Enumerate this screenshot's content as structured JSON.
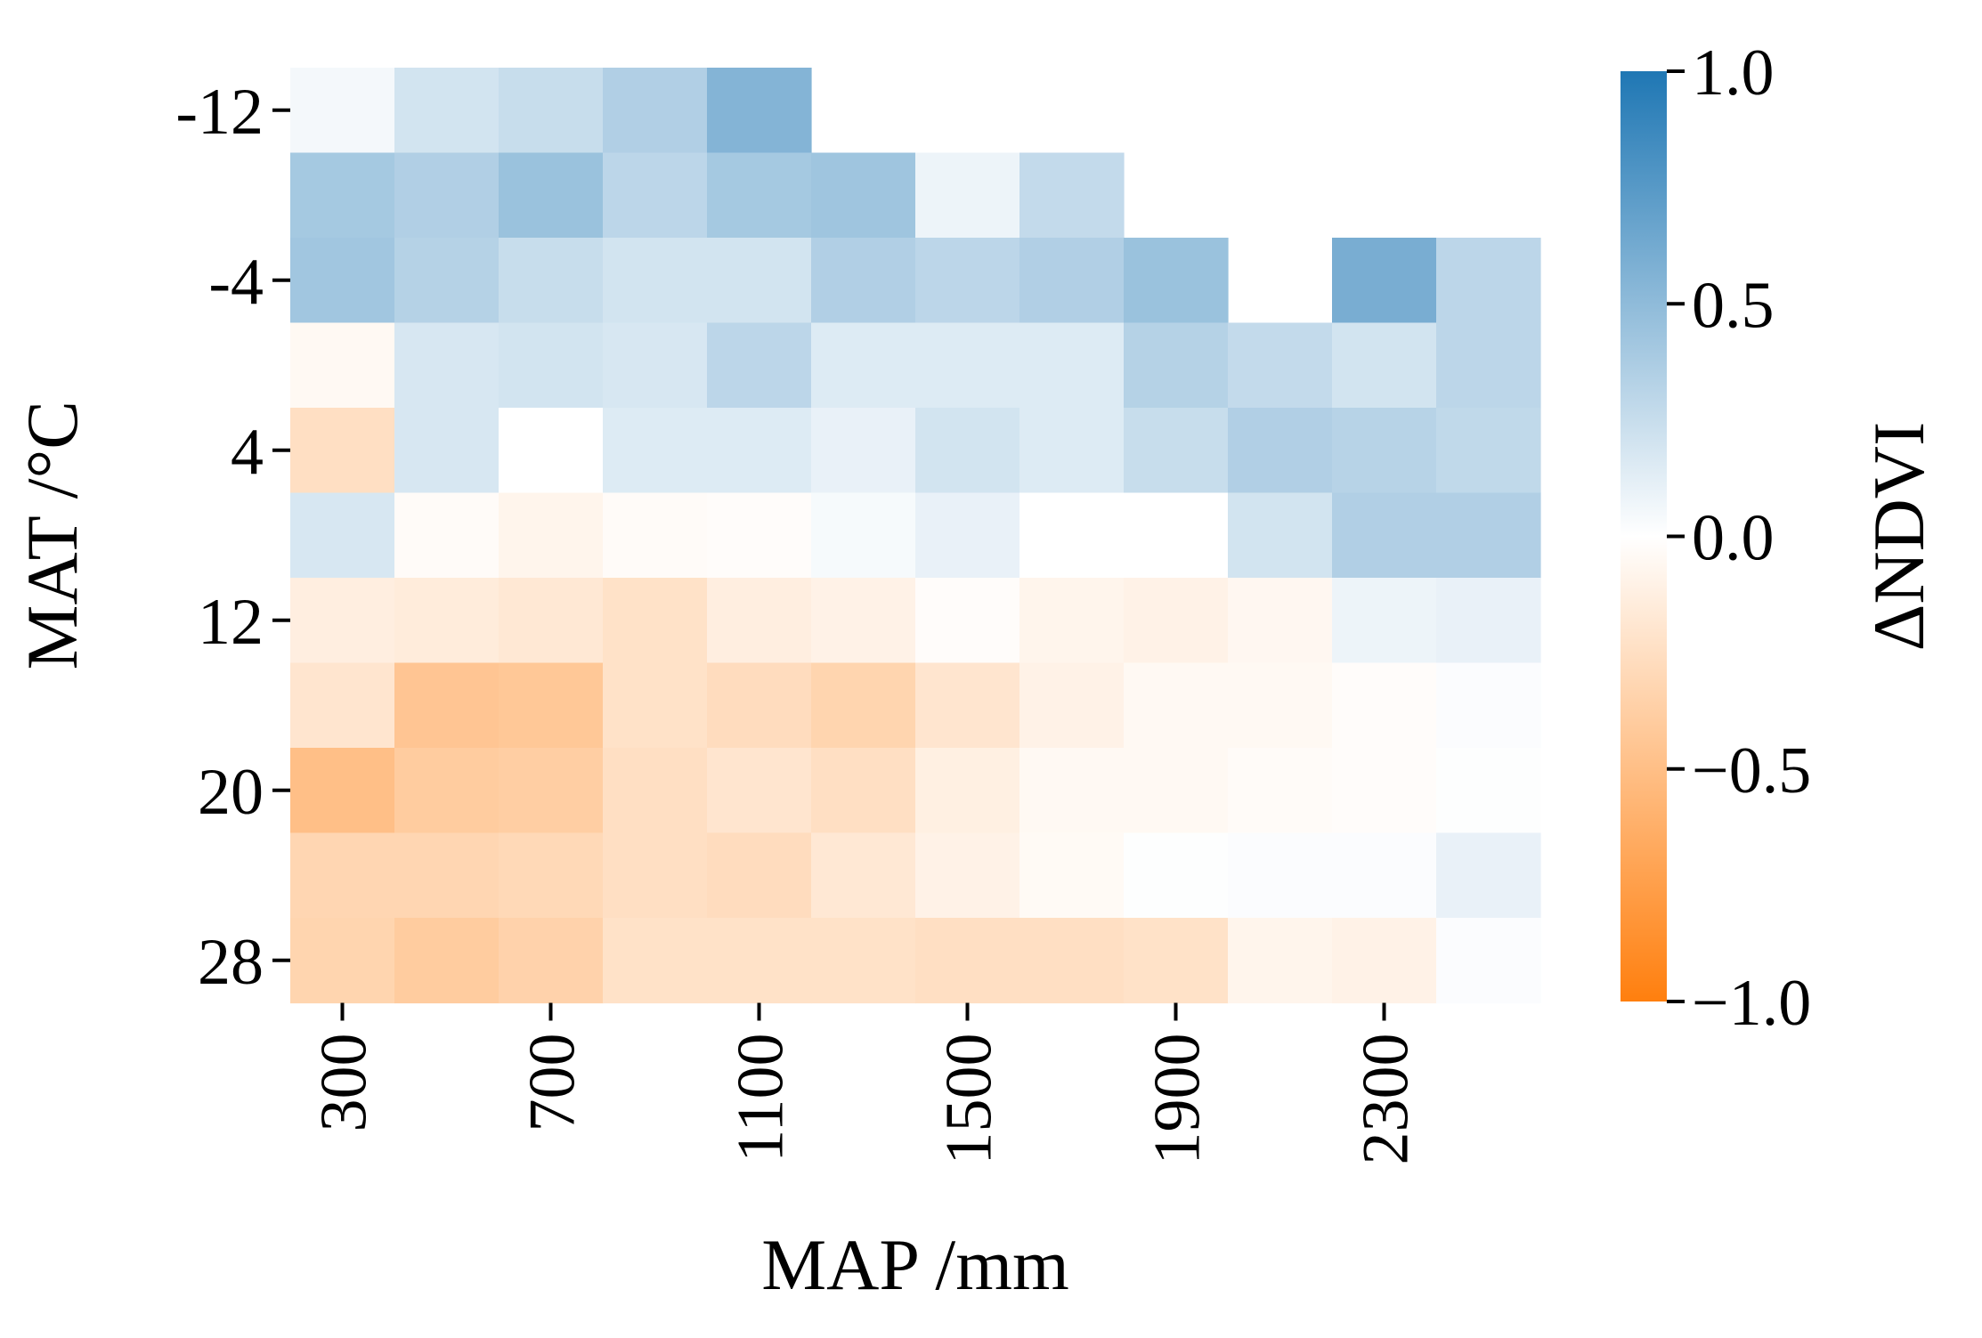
{
  "chart_data": {
    "type": "heatmap",
    "title": "",
    "xlabel": "MAP /mm",
    "ylabel": "MAT /°C",
    "colorbar_label": "ΔNDVI",
    "x_tick_labels": [
      "300",
      "700",
      "1100",
      "1500",
      "1900",
      "2300"
    ],
    "y_tick_labels": [
      "-12",
      "-4",
      "4",
      "12",
      "20",
      "28"
    ],
    "colorbar_tick_labels": [
      "1.0",
      "0.5",
      "0.0",
      "−0.5",
      "−1.0"
    ],
    "x_bins": [
      300,
      500,
      700,
      900,
      1100,
      1300,
      1500,
      1700,
      1900,
      2100,
      2300,
      2500
    ],
    "y_bins": [
      -12,
      -8,
      -4,
      0,
      4,
      8,
      12,
      16,
      20,
      24,
      28
    ],
    "vmin": -1.0,
    "vmax": 1.0,
    "colors": {
      "negative": "#ff7f0e",
      "zero": "#ffffff",
      "positive": "#1f77b4"
    },
    "values": [
      [
        0.05,
        0.2,
        0.25,
        0.35,
        0.55,
        null,
        null,
        null,
        null,
        null,
        null,
        null
      ],
      [
        0.4,
        0.35,
        0.45,
        0.3,
        0.4,
        0.43,
        0.08,
        0.27,
        null,
        null,
        null,
        null
      ],
      [
        0.42,
        0.33,
        0.25,
        0.2,
        0.2,
        0.35,
        0.3,
        0.35,
        0.45,
        null,
        0.6,
        0.3
      ],
      [
        -0.05,
        0.18,
        0.2,
        0.18,
        0.3,
        0.15,
        0.15,
        0.15,
        0.33,
        0.27,
        0.2,
        0.3
      ],
      [
        -0.25,
        0.18,
        0.0,
        0.15,
        0.15,
        0.1,
        0.2,
        0.15,
        0.25,
        0.35,
        0.32,
        0.28
      ],
      [
        0.18,
        -0.03,
        -0.08,
        -0.03,
        -0.02,
        0.04,
        0.1,
        0.0,
        0.0,
        0.2,
        0.35,
        0.35
      ],
      [
        -0.13,
        -0.15,
        -0.18,
        -0.23,
        -0.13,
        -0.1,
        -0.02,
        -0.08,
        -0.1,
        -0.06,
        0.08,
        0.1
      ],
      [
        -0.2,
        -0.45,
        -0.43,
        -0.23,
        -0.27,
        -0.33,
        -0.2,
        -0.1,
        -0.05,
        -0.05,
        -0.02,
        0.02
      ],
      [
        -0.5,
        -0.4,
        -0.38,
        -0.25,
        -0.2,
        -0.25,
        -0.12,
        -0.05,
        -0.05,
        -0.03,
        -0.02,
        0.01
      ],
      [
        -0.32,
        -0.32,
        -0.3,
        -0.25,
        -0.27,
        -0.18,
        -0.1,
        -0.04,
        0.01,
        0.02,
        0.02,
        0.1
      ],
      [
        -0.33,
        -0.4,
        -0.35,
        -0.23,
        -0.23,
        -0.23,
        -0.25,
        -0.25,
        -0.23,
        -0.08,
        -0.1,
        0.02
      ]
    ]
  }
}
